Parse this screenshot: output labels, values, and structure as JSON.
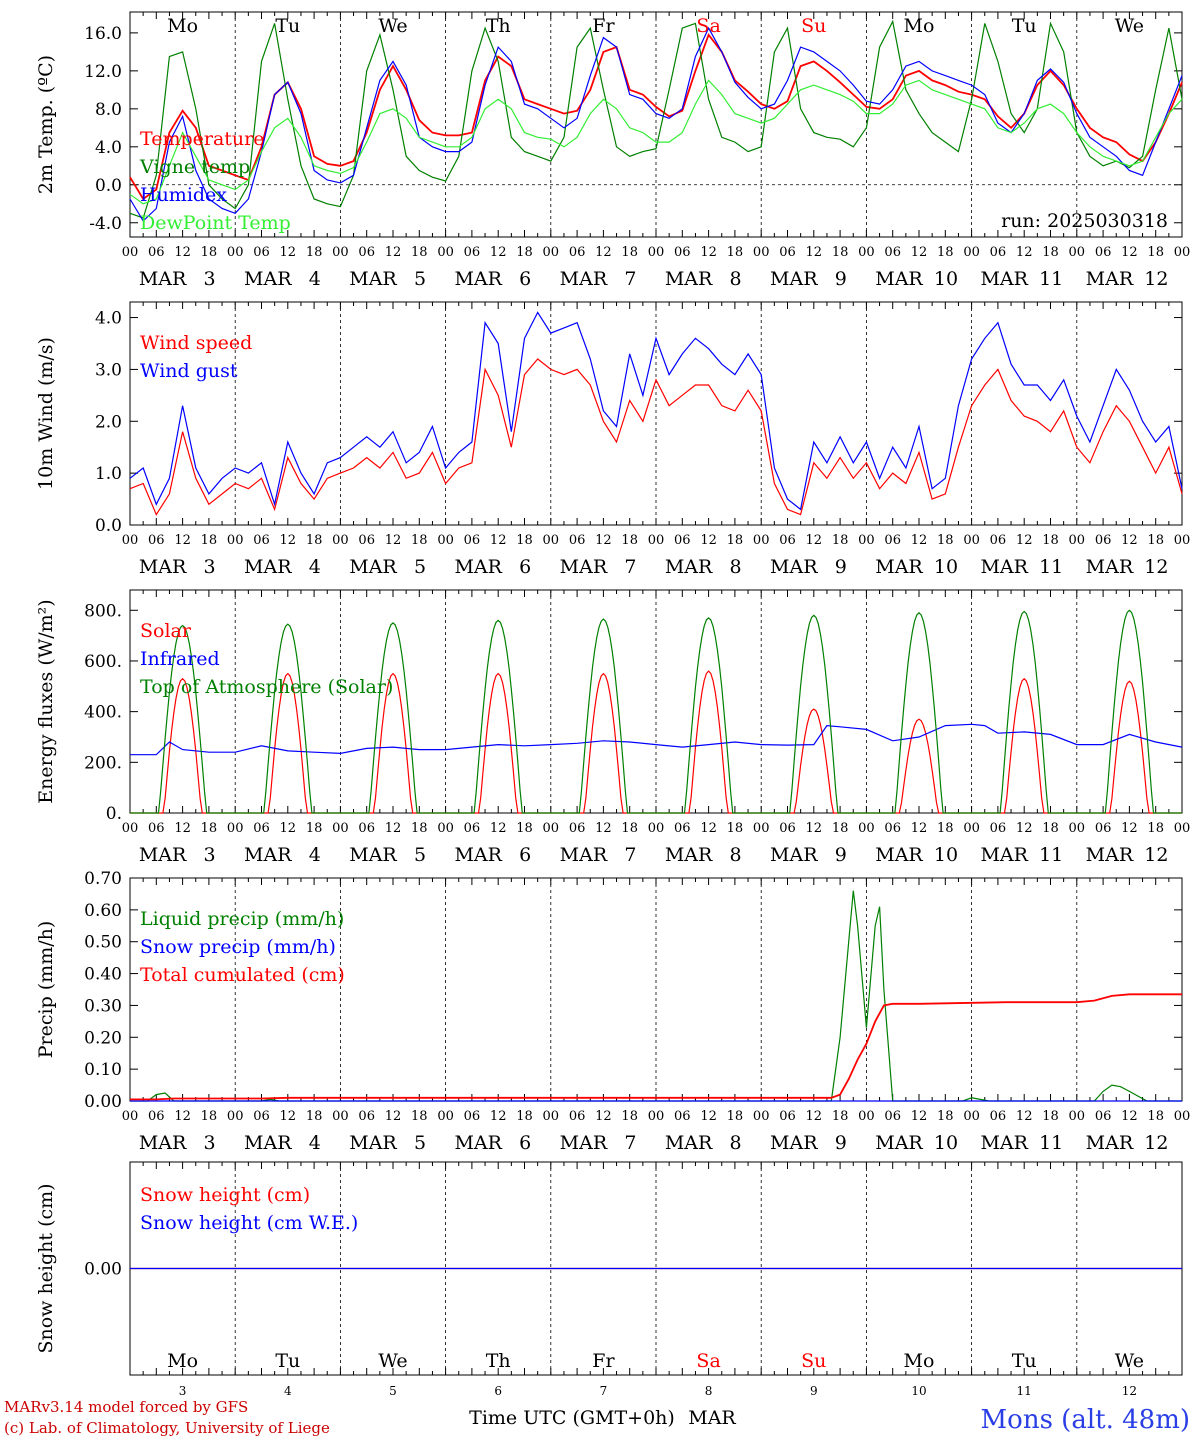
{
  "run_label": "run: 2025030318",
  "footer": {
    "model": "MARv3.14 model forced by GFS",
    "credit": "(c) Lab. of Climatology, University of Liege",
    "time_axis": "Time UTC (GMT+0h)",
    "month": "MAR",
    "station": "Mons (alt. 48m)"
  },
  "days": [
    {
      "weekday": "Mo",
      "date": "3",
      "weekend": false
    },
    {
      "weekday": "Tu",
      "date": "4",
      "weekend": false
    },
    {
      "weekday": "We",
      "date": "5",
      "weekend": false
    },
    {
      "weekday": "Th",
      "date": "6",
      "weekend": false
    },
    {
      "weekday": "Fr",
      "date": "7",
      "weekend": false
    },
    {
      "weekday": "Sa",
      "date": "8",
      "weekend": true
    },
    {
      "weekday": "Su",
      "date": "9",
      "weekend": true
    },
    {
      "weekday": "Mo",
      "date": "10",
      "weekend": false
    },
    {
      "weekday": "Tu",
      "date": "11",
      "weekend": false
    },
    {
      "weekday": "We",
      "date": "12",
      "weekend": false
    }
  ],
  "hour_labels": [
    "00",
    "06",
    "12",
    "18"
  ],
  "final_hour_label": "00",
  "month_abbrev": "MAR",
  "colors": {
    "red": "#ff0000",
    "dark_green": "#008000",
    "blue": "#0000ff",
    "light_green": "#33ee33",
    "weekend": "#ff0000",
    "station": "#2a3ee6"
  },
  "chart_data": [
    {
      "id": "temperature",
      "type": "line",
      "ylabel": "2m Temp. (ºC)",
      "ylim": [
        -5.5,
        18.2
      ],
      "yticks": [
        -4,
        0,
        4,
        8,
        12,
        16
      ],
      "ytick_labels": [
        "-4.0",
        "0.0",
        "4.0",
        "8.0",
        "12.0",
        "16.0"
      ],
      "zero_line": true,
      "x_unit": "hours since MAR 3 00 UTC",
      "x": [
        0,
        3,
        6,
        9,
        12,
        15,
        18,
        21,
        24,
        27,
        30,
        33,
        36,
        39,
        42,
        45,
        48,
        51,
        54,
        57,
        60,
        63,
        66,
        69,
        72,
        75,
        78,
        81,
        84,
        87,
        90,
        93,
        96,
        99,
        102,
        105,
        108,
        111,
        114,
        117,
        120,
        123,
        126,
        129,
        132,
        135,
        138,
        141,
        144,
        147,
        150,
        153,
        156,
        159,
        162,
        165,
        168,
        171,
        174,
        177,
        180,
        183,
        186,
        189,
        192,
        195,
        198,
        201,
        204,
        207,
        210,
        213,
        216,
        219,
        222,
        225,
        228,
        231,
        234,
        237,
        240
      ],
      "series": [
        {
          "name": "Temperature",
          "color": "#ff0000",
          "values": [
            0.8,
            -1.5,
            -0.5,
            5.5,
            7.8,
            6.0,
            2.0,
            1.5,
            1.0,
            0.5,
            4.0,
            9.5,
            10.8,
            8.0,
            3.0,
            2.2,
            2.0,
            2.5,
            5.5,
            10.0,
            12.5,
            10.0,
            6.8,
            5.5,
            5.2,
            5.2,
            5.5,
            11.0,
            13.5,
            12.5,
            9.0,
            8.5,
            8.0,
            7.5,
            7.8,
            10.0,
            14.0,
            14.5,
            10.0,
            9.5,
            8.2,
            7.2,
            7.8,
            12.0,
            15.8,
            14.0,
            11.0,
            9.8,
            8.5,
            8.0,
            8.8,
            12.5,
            13.0,
            12.0,
            10.8,
            9.5,
            8.2,
            8.0,
            9.0,
            11.5,
            12.0,
            11.0,
            10.5,
            9.8,
            9.5,
            9.0,
            7.2,
            6.0,
            7.5,
            10.5,
            12.0,
            10.5,
            8.0,
            6.0,
            5.0,
            4.5,
            3.2,
            2.5,
            4.5,
            7.5,
            10.8
          ]
        },
        {
          "name": "Vigne temp",
          "color": "#008000",
          "values": [
            -3.0,
            -3.5,
            1.0,
            13.5,
            14.0,
            8.0,
            0.0,
            -1.5,
            -2.5,
            0.0,
            13.0,
            17.0,
            9.0,
            2.0,
            -1.5,
            -2.0,
            -2.3,
            1.0,
            12.0,
            15.8,
            10.0,
            3.0,
            1.5,
            0.8,
            0.4,
            3.0,
            12.0,
            16.5,
            13.0,
            5.0,
            3.5,
            3.0,
            2.5,
            5.0,
            14.5,
            16.5,
            10.0,
            4.0,
            3.0,
            3.5,
            3.8,
            10.0,
            16.5,
            17.0,
            9.0,
            5.0,
            4.5,
            3.5,
            4.0,
            14.0,
            16.5,
            8.0,
            5.5,
            5.0,
            4.8,
            4.0,
            6.0,
            14.5,
            17.2,
            10.0,
            7.5,
            5.5,
            4.5,
            3.5,
            9.0,
            17.0,
            13.0,
            7.5,
            5.5,
            8.0,
            17.0,
            14.0,
            5.5,
            3.0,
            2.0,
            2.5,
            1.8,
            3.0,
            10.0,
            16.5,
            9.0
          ]
        },
        {
          "name": "Humidex",
          "color": "#0000ff",
          "values": [
            -1.5,
            -3.8,
            -2.5,
            4.5,
            7.2,
            1.5,
            -1.5,
            -2.5,
            -3.0,
            -1.5,
            3.5,
            9.5,
            10.8,
            7.5,
            1.5,
            0.5,
            0.2,
            1.0,
            6.0,
            11.0,
            13.0,
            10.5,
            5.0,
            4.0,
            3.5,
            3.5,
            4.5,
            10.5,
            14.5,
            13.0,
            8.5,
            8.0,
            7.0,
            6.0,
            7.0,
            11.5,
            15.5,
            14.5,
            9.5,
            9.0,
            7.5,
            7.0,
            8.0,
            13.5,
            16.5,
            14.0,
            10.8,
            9.2,
            8.0,
            8.5,
            11.0,
            14.5,
            14.0,
            13.0,
            12.0,
            10.5,
            8.8,
            8.5,
            10.0,
            12.5,
            13.0,
            12.0,
            11.5,
            11.0,
            10.5,
            9.5,
            6.5,
            5.5,
            7.5,
            11.0,
            12.2,
            10.8,
            7.5,
            5.0,
            4.0,
            3.0,
            1.5,
            1.0,
            4.5,
            8.0,
            11.5
          ]
        },
        {
          "name": "DewPoint Temp",
          "color": "#33ee33",
          "values": [
            -1.0,
            -2.0,
            -1.5,
            2.0,
            5.5,
            3.0,
            0.5,
            0.0,
            -0.5,
            0.5,
            3.5,
            6.0,
            7.0,
            5.0,
            2.0,
            1.5,
            1.2,
            1.8,
            4.5,
            7.5,
            8.0,
            7.0,
            5.0,
            4.5,
            4.0,
            4.0,
            5.0,
            8.0,
            9.0,
            8.0,
            5.5,
            5.0,
            4.8,
            4.0,
            5.0,
            7.5,
            9.0,
            8.0,
            6.0,
            5.5,
            4.5,
            4.5,
            5.5,
            8.5,
            11.0,
            9.5,
            7.5,
            7.0,
            6.5,
            7.0,
            8.5,
            10.0,
            10.5,
            10.0,
            9.5,
            8.8,
            7.5,
            7.5,
            8.5,
            10.5,
            11.0,
            10.0,
            9.5,
            9.0,
            8.5,
            8.0,
            6.0,
            5.5,
            6.5,
            8.0,
            8.5,
            7.5,
            5.5,
            4.0,
            3.0,
            2.5,
            2.0,
            2.5,
            5.0,
            7.5,
            9.0
          ]
        }
      ]
    },
    {
      "id": "wind",
      "type": "line",
      "ylabel": "10m Wind (m/s)",
      "ylim": [
        0,
        4.3
      ],
      "yticks": [
        0,
        1,
        2,
        3,
        4
      ],
      "ytick_labels": [
        "0.0",
        "1.0",
        "2.0",
        "3.0",
        "4.0"
      ],
      "x_unit": "hours since MAR 3 00 UTC",
      "x": [
        0,
        3,
        6,
        9,
        12,
        15,
        18,
        21,
        24,
        27,
        30,
        33,
        36,
        39,
        42,
        45,
        48,
        51,
        54,
        57,
        60,
        63,
        66,
        69,
        72,
        75,
        78,
        81,
        84,
        87,
        90,
        93,
        96,
        99,
        102,
        105,
        108,
        111,
        114,
        117,
        120,
        123,
        126,
        129,
        132,
        135,
        138,
        141,
        144,
        147,
        150,
        153,
        156,
        159,
        162,
        165,
        168,
        171,
        174,
        177,
        180,
        183,
        186,
        189,
        192,
        195,
        198,
        201,
        204,
        207,
        210,
        213,
        216,
        219,
        222,
        225,
        228,
        231,
        234,
        237,
        240
      ],
      "series": [
        {
          "name": "Wind speed",
          "color": "#ff0000",
          "values": [
            0.7,
            0.8,
            0.2,
            0.6,
            1.8,
            0.9,
            0.4,
            0.6,
            0.8,
            0.7,
            0.9,
            0.3,
            1.3,
            0.8,
            0.5,
            0.9,
            1.0,
            1.1,
            1.3,
            1.1,
            1.4,
            0.9,
            1.0,
            1.4,
            0.8,
            1.1,
            1.2,
            3.0,
            2.5,
            1.5,
            2.9,
            3.2,
            3.0,
            2.9,
            3.0,
            2.7,
            2.0,
            1.6,
            2.4,
            2.0,
            2.8,
            2.3,
            2.5,
            2.7,
            2.7,
            2.3,
            2.2,
            2.6,
            2.2,
            0.8,
            0.3,
            0.2,
            1.2,
            0.9,
            1.3,
            0.9,
            1.2,
            0.7,
            1.0,
            0.8,
            1.4,
            0.5,
            0.6,
            1.5,
            2.3,
            2.7,
            3.0,
            2.4,
            2.1,
            2.0,
            1.8,
            2.2,
            1.5,
            1.2,
            1.8,
            2.3,
            2.0,
            1.5,
            1.0,
            1.5,
            0.6
          ]
        },
        {
          "name": "Wind gust",
          "color": "#0000ff",
          "values": [
            0.9,
            1.1,
            0.4,
            0.9,
            2.3,
            1.1,
            0.6,
            0.9,
            1.1,
            1.0,
            1.2,
            0.4,
            1.6,
            1.0,
            0.6,
            1.2,
            1.3,
            1.5,
            1.7,
            1.5,
            1.8,
            1.2,
            1.4,
            1.9,
            1.1,
            1.4,
            1.6,
            3.9,
            3.5,
            1.8,
            3.6,
            4.1,
            3.7,
            3.8,
            3.9,
            3.2,
            2.2,
            1.9,
            3.3,
            2.5,
            3.6,
            2.9,
            3.3,
            3.6,
            3.4,
            3.1,
            2.9,
            3.3,
            2.9,
            1.1,
            0.5,
            0.3,
            1.6,
            1.2,
            1.7,
            1.2,
            1.6,
            0.9,
            1.5,
            1.1,
            1.9,
            0.7,
            0.9,
            2.3,
            3.2,
            3.6,
            3.9,
            3.1,
            2.7,
            2.7,
            2.4,
            2.8,
            2.1,
            1.6,
            2.3,
            3.0,
            2.6,
            2.0,
            1.6,
            1.9,
            0.7
          ]
        }
      ]
    },
    {
      "id": "energy",
      "type": "line",
      "ylabel": "Energy fluxes (W/m²)",
      "ylim": [
        0,
        880
      ],
      "yticks": [
        0,
        200,
        400,
        600,
        800
      ],
      "ytick_labels": [
        "0.",
        "200.",
        "400.",
        "600.",
        "800."
      ],
      "x_unit": "hours since MAR 3 00 UTC",
      "peak_solar": [
        530,
        550,
        550,
        550,
        550,
        560,
        410,
        370,
        530,
        520
      ],
      "peak_toa": [
        740,
        745,
        750,
        760,
        765,
        770,
        780,
        790,
        795,
        800
      ],
      "series": [
        {
          "name": "Solar",
          "color": "#ff0000"
        },
        {
          "name": "Infrared",
          "color": "#0000ff",
          "x": [
            0,
            6,
            9,
            12,
            18,
            24,
            30,
            36,
            42,
            48,
            54,
            60,
            66,
            72,
            78,
            84,
            90,
            96,
            102,
            108,
            114,
            120,
            126,
            132,
            138,
            144,
            150,
            156,
            159,
            162,
            168,
            174,
            180,
            186,
            192,
            195,
            198,
            204,
            210,
            216,
            222,
            228,
            234,
            240
          ],
          "values": [
            230,
            230,
            280,
            250,
            240,
            240,
            265,
            245,
            240,
            235,
            255,
            260,
            250,
            250,
            260,
            270,
            265,
            270,
            275,
            285,
            280,
            270,
            260,
            270,
            280,
            270,
            268,
            270,
            345,
            340,
            330,
            285,
            300,
            345,
            350,
            345,
            315,
            320,
            310,
            270,
            270,
            310,
            280,
            260
          ]
        },
        {
          "name": "Top of Atmosphere (Solar)",
          "color": "#008000"
        }
      ]
    },
    {
      "id": "precip",
      "type": "line",
      "ylabel": "Precip (mm/h)",
      "ylim": [
        0,
        0.7
      ],
      "yticks": [
        0,
        0.1,
        0.2,
        0.3,
        0.4,
        0.5,
        0.6,
        0.7
      ],
      "ytick_labels": [
        "0.00",
        "0.10",
        "0.20",
        "0.30",
        "0.40",
        "0.50",
        "0.60",
        "0.70"
      ],
      "x_unit": "hours since MAR 3 00 UTC",
      "series": [
        {
          "name": "Liquid precip (mm/h)",
          "color": "#008000",
          "x": [
            0,
            4,
            6,
            8,
            10,
            24,
            30,
            32,
            34,
            36,
            150,
            160,
            162,
            165,
            166,
            168,
            170,
            171,
            172,
            174,
            180,
            190,
            192,
            194,
            196,
            216,
            220,
            222,
            224,
            226,
            228,
            232,
            240
          ],
          "values": [
            0,
            0,
            0.02,
            0.025,
            0,
            0,
            0,
            0.005,
            0,
            0,
            0,
            0,
            0.2,
            0.66,
            0.55,
            0.23,
            0.55,
            0.61,
            0.35,
            0,
            0,
            0,
            0.01,
            0.005,
            0,
            0,
            0,
            0.03,
            0.05,
            0.045,
            0.03,
            0,
            0
          ]
        },
        {
          "name": "Snow precip (mm/h)",
          "color": "#0000ff",
          "x": [
            0,
            240
          ],
          "values": [
            0,
            0
          ]
        },
        {
          "name": "Total cumulated (cm)",
          "color": "#ff0000",
          "x": [
            0,
            6,
            10,
            30,
            36,
            160,
            162,
            164,
            166,
            168,
            170,
            172,
            174,
            180,
            200,
            210,
            216,
            220,
            224,
            228,
            240
          ],
          "values": [
            0.005,
            0.005,
            0.008,
            0.008,
            0.01,
            0.01,
            0.02,
            0.07,
            0.13,
            0.18,
            0.25,
            0.3,
            0.305,
            0.305,
            0.31,
            0.31,
            0.31,
            0.315,
            0.33,
            0.335,
            0.335
          ]
        }
      ]
    },
    {
      "id": "snow",
      "type": "line",
      "ylabel": "Snow height (cm)",
      "ylim": [
        -1,
        1
      ],
      "yticks": [
        0
      ],
      "ytick_labels": [
        "0.00"
      ],
      "x_unit": "hours since MAR 3 00 UTC",
      "series": [
        {
          "name": "Snow height (cm)",
          "color": "#ff0000",
          "x": [
            0,
            240
          ],
          "values": [
            0,
            0
          ]
        },
        {
          "name": "Snow height (cm W.E.)",
          "color": "#0000ff",
          "x": [
            0,
            240
          ],
          "values": [
            0,
            0
          ]
        }
      ]
    }
  ]
}
